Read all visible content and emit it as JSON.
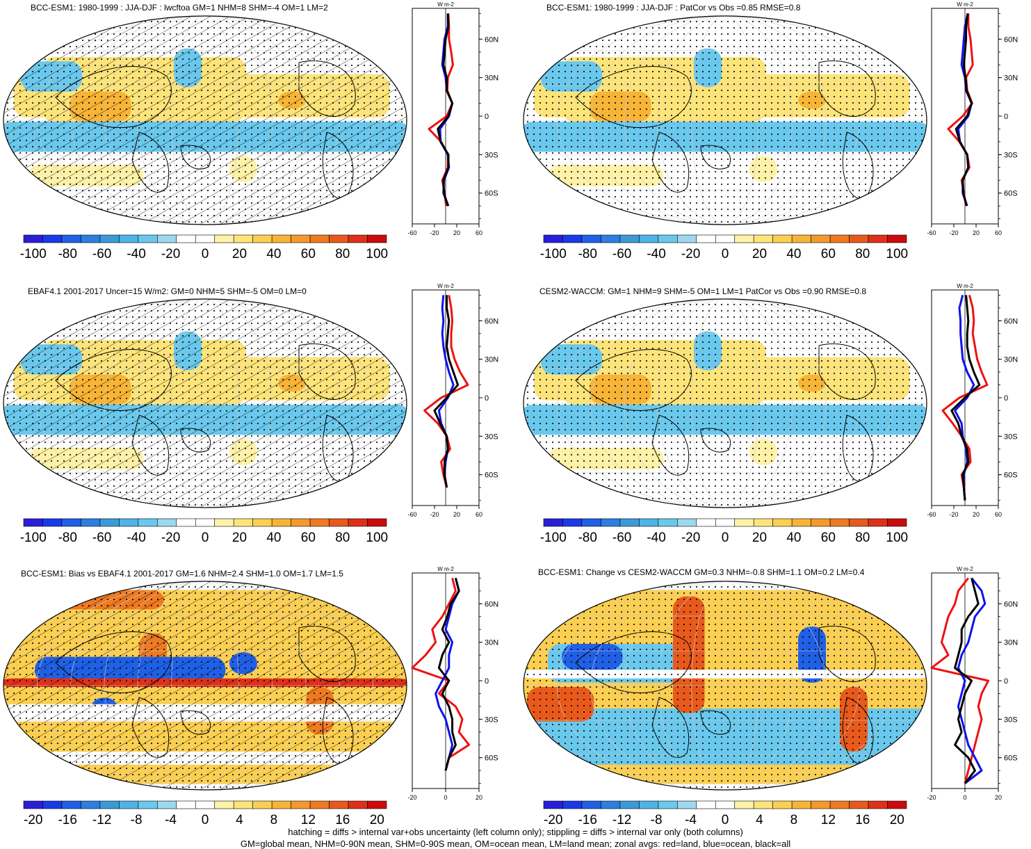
{
  "panels": [
    {
      "id": "p1",
      "title": "BCC-ESM1: 1980-1999 : JJA-DJF : lwcftoa GM=1 NHM=8 SHM=-4 OM=1 LM=2",
      "style": "seasonal",
      "hatch": true,
      "zonal": {
        "xticks": [
          -60,
          -20,
          20,
          60
        ],
        "xlim": [
          -60,
          60
        ],
        "unit": "W m-2",
        "lat": [
          80,
          70,
          60,
          50,
          40,
          30,
          20,
          10,
          0,
          -10,
          -20,
          -30,
          -40,
          -50,
          -60,
          -70
        ],
        "land": [
          5,
          6,
          6,
          10,
          13,
          4,
          3,
          12,
          2,
          -30,
          -8,
          4,
          4,
          -6,
          -2,
          1
        ],
        "ocean": [
          4,
          4,
          -2,
          -4,
          -6,
          0,
          2,
          12,
          6,
          -10,
          -9,
          4,
          6,
          -3,
          -4,
          5
        ],
        "all": [
          4,
          5,
          0,
          -2,
          -4,
          2,
          2,
          12,
          5,
          -14,
          -9,
          5,
          5,
          -4,
          -3,
          4
        ]
      }
    },
    {
      "id": "p2",
      "title": "BCC-ESM1: 1980-1999 : JJA-DJF : PatCor vs Obs =0.85 RMSE=0.8",
      "style": "seasonal",
      "hatch": false,
      "zonal": {
        "xticks": [
          -60,
          -20,
          20,
          60
        ],
        "xlim": [
          -60,
          60
        ],
        "unit": "W m-2",
        "lat": [
          80,
          70,
          60,
          50,
          40,
          30,
          20,
          10,
          0,
          -10,
          -20,
          -30,
          -40,
          -50,
          -60,
          -70
        ],
        "land": [
          6,
          6,
          10,
          12,
          14,
          2,
          4,
          13,
          -4,
          -30,
          -10,
          4,
          8,
          -6,
          -2,
          2
        ],
        "ocean": [
          5,
          0,
          -2,
          -4,
          -6,
          0,
          2,
          12,
          6,
          -12,
          -9,
          4,
          6,
          -4,
          -4,
          4
        ],
        "all": [
          5,
          2,
          2,
          0,
          -2,
          1,
          3,
          12,
          4,
          -16,
          -9,
          4,
          6,
          -4,
          -3,
          3
        ]
      }
    },
    {
      "id": "p3",
      "title": "EBAF4.1 2001-2017 Uncer=15 W/m2: GM=0 NHM=5 SHM=-5 OM=0 LM=0",
      "style": "seasonal",
      "hatch": true,
      "zonal": {
        "xticks": [
          -60,
          -20,
          20,
          60
        ],
        "xlim": [
          -60,
          60
        ],
        "unit": "W m-2",
        "lat": [
          80,
          70,
          60,
          50,
          40,
          30,
          20,
          10,
          0,
          -10,
          -20,
          -30,
          -40,
          -50,
          -60,
          -70
        ],
        "land": [
          6,
          10,
          12,
          10,
          10,
          16,
          26,
          40,
          -8,
          -38,
          -14,
          2,
          8,
          -8,
          -4,
          2
        ],
        "ocean": [
          -4,
          -6,
          -4,
          -6,
          -4,
          0,
          6,
          14,
          4,
          -12,
          -8,
          2,
          4,
          0,
          -2,
          2
        ],
        "all": [
          2,
          2,
          6,
          4,
          2,
          6,
          14,
          22,
          2,
          -20,
          -10,
          2,
          4,
          -2,
          -2,
          2
        ]
      }
    },
    {
      "id": "p4",
      "title": "CESM2-WACCM: GM=1 NHM=9 SHM=-5 OM=1 LM=1 PatCor vs Obs =0.90 RMSE=0.8",
      "style": "seasonal",
      "hatch": false,
      "zonal": {
        "xticks": [
          -60,
          -20,
          20,
          60
        ],
        "xlim": [
          -60,
          60
        ],
        "unit": "W m-2",
        "lat": [
          80,
          70,
          60,
          50,
          40,
          30,
          20,
          10,
          0,
          -10,
          -20,
          -30,
          -40,
          -50,
          -60,
          -70,
          -80
        ],
        "land": [
          8,
          14,
          16,
          14,
          18,
          22,
          30,
          40,
          -10,
          -40,
          -22,
          -6,
          8,
          10,
          -6,
          -2,
          0
        ],
        "ocean": [
          -4,
          -10,
          -8,
          -8,
          -6,
          -4,
          4,
          16,
          4,
          -18,
          -6,
          -4,
          2,
          4,
          -2,
          -2,
          0
        ],
        "all": [
          2,
          4,
          6,
          4,
          4,
          8,
          16,
          26,
          0,
          -24,
          -12,
          -6,
          4,
          6,
          -4,
          -2,
          0
        ]
      }
    },
    {
      "id": "p5",
      "title": "BCC-ESM1: Bias vs EBAF4.1 2001-2017 GM=1.6 NHM=2.4 SHM=1.0 OM=1.7 LM=1.5",
      "style": "bias",
      "hatch": true,
      "zonal": {
        "xticks": [
          -20,
          0,
          20
        ],
        "xlim": [
          -20,
          20
        ],
        "unit": "W m-2",
        "lat": [
          80,
          70,
          60,
          50,
          40,
          30,
          20,
          10,
          0,
          -10,
          -20,
          -30,
          -40,
          -50,
          -60,
          -70
        ],
        "land": [
          4,
          6,
          2,
          -2,
          -8,
          -6,
          -12,
          -20,
          2,
          -4,
          6,
          10,
          8,
          14,
          2,
          0
        ],
        "ocean": [
          6,
          8,
          4,
          2,
          0,
          4,
          2,
          2,
          -2,
          -6,
          -4,
          0,
          2,
          4,
          2,
          0
        ],
        "all": [
          6,
          8,
          3,
          1,
          -2,
          2,
          -2,
          -4,
          2,
          -2,
          2,
          4,
          4,
          6,
          2,
          0
        ]
      }
    },
    {
      "id": "p6",
      "title": "BCC-ESM1: Change vs CESM2-WACCM GM=0.3 NHM=-0.8 SHM=1.1 OM=0.2 LM=0.4",
      "style": "change",
      "hatch": false,
      "zonal": {
        "xticks": [
          -20,
          0,
          20
        ],
        "xlim": [
          -20,
          20
        ],
        "unit": "W m-2",
        "lat": [
          80,
          70,
          60,
          50,
          40,
          30,
          20,
          10,
          0,
          -10,
          -20,
          -30,
          -40,
          -50,
          -60,
          -70,
          -80
        ],
        "land": [
          2,
          -4,
          -6,
          -10,
          -12,
          -14,
          -10,
          -20,
          14,
          10,
          8,
          10,
          8,
          6,
          4,
          2,
          0
        ],
        "ocean": [
          4,
          10,
          12,
          6,
          4,
          2,
          -2,
          -4,
          0,
          -2,
          -4,
          -2,
          0,
          2,
          6,
          10,
          0
        ],
        "all": [
          4,
          6,
          8,
          2,
          -2,
          -2,
          -4,
          -6,
          4,
          0,
          -2,
          -4,
          -2,
          -6,
          2,
          6,
          0
        ]
      }
    }
  ],
  "lat_labels": [
    "60N",
    "30N",
    "0",
    "30S",
    "60S"
  ],
  "colorbars": {
    "top": {
      "labels": [
        "-100",
        "-80",
        "-60",
        "-40",
        "-20",
        "0",
        "20",
        "40",
        "60",
        "80",
        "100"
      ]
    },
    "bottom": {
      "labels": [
        "-20",
        "-16",
        "-12",
        "-8",
        "-4",
        "0",
        "4",
        "8",
        "12",
        "16",
        "20"
      ]
    },
    "colors": [
      "#2a1fd8",
      "#1a3ae8",
      "#2060e6",
      "#2c7fe0",
      "#3c9ad8",
      "#4eb3e6",
      "#6ac8ec",
      "#9ed8ee",
      "#ffffff",
      "#ffffff",
      "#fff2a8",
      "#fde47a",
      "#fbcf52",
      "#f7b436",
      "#f5992a",
      "#ef7a22",
      "#e85a1c",
      "#e03018",
      "#cc0a0e"
    ]
  },
  "footer": {
    "line1": "hatching = diffs > internal var+obs uncertainty (left column only); stippling = diffs > internal var only (both columns)",
    "line2": "GM=global mean, NHM=0-90N mean, SHM=0-90S mean, OM=ocean mean, LM=land mean; zonal avgs: red=land, blue=ocean, black=all"
  },
  "colors": {
    "land": "#ee1111",
    "ocean": "#1010ee",
    "all": "#000000"
  }
}
